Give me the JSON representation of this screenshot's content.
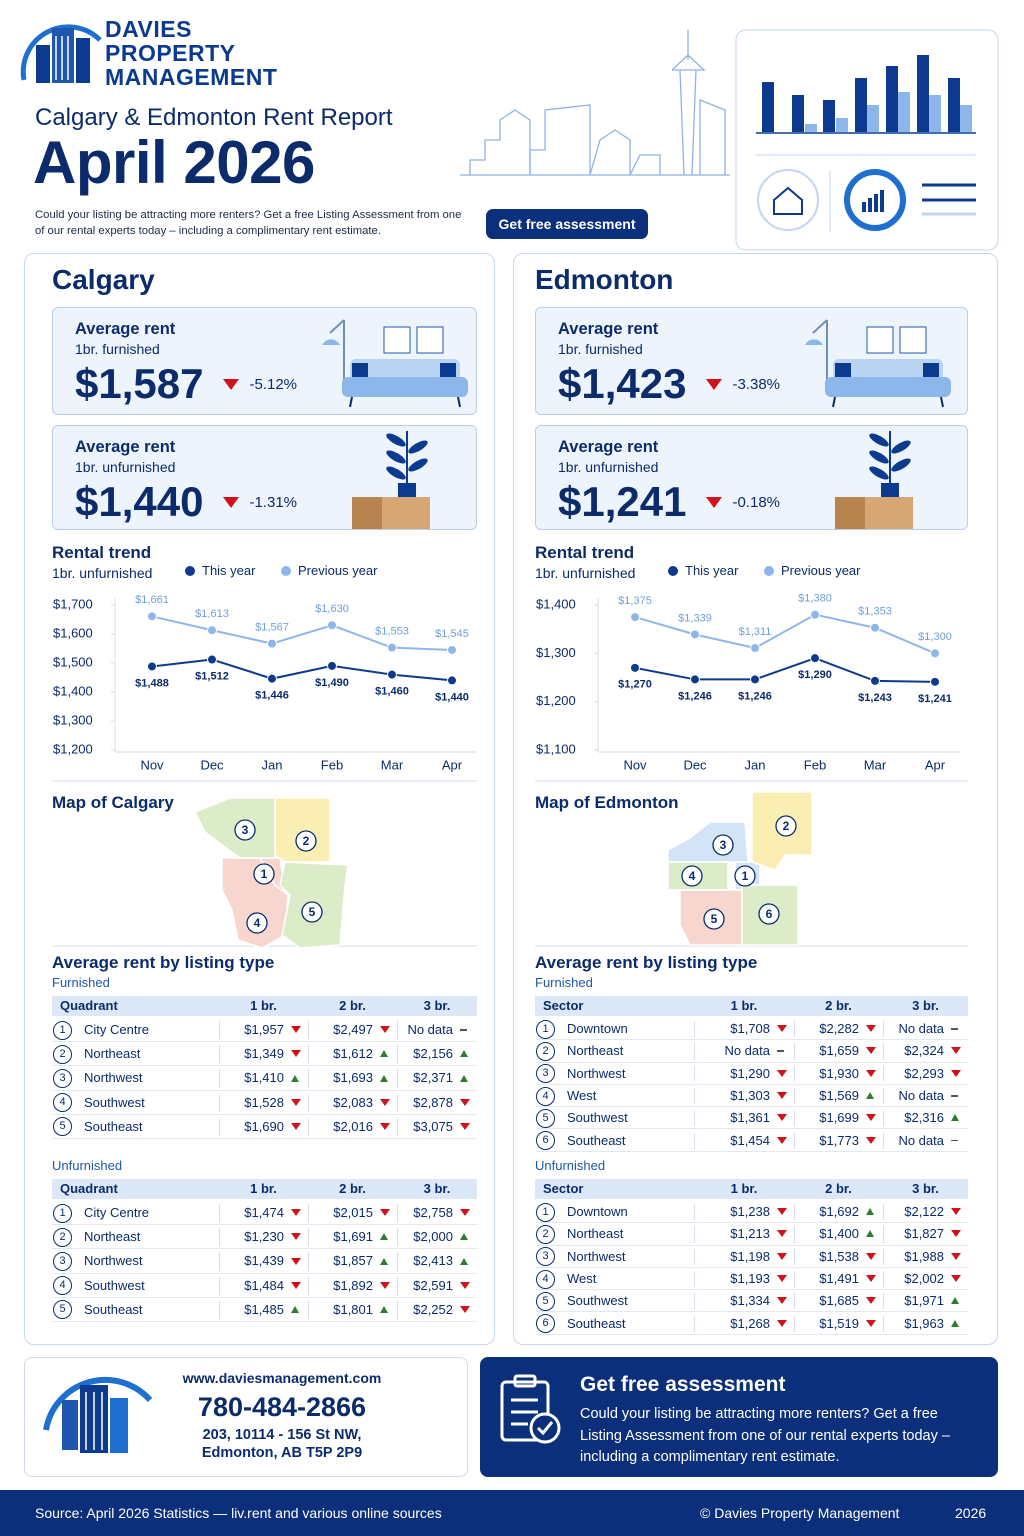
{
  "header": {
    "brand": [
      "DAVIES",
      "PROPERTY",
      "MANAGEMENT"
    ],
    "subtitle": "Calgary & Edmonton Rent Report",
    "title": "April 2026",
    "intro": "Could your listing be attracting more renters? Get a free Listing Assessment from one of our rental experts today – including a complimentary rent estimate.",
    "button": "Get free assessment"
  },
  "cities": [
    {
      "name": "Calgary",
      "cards": [
        {
          "label": "Average rent",
          "detail": "1br. furnished",
          "value": "$1,587",
          "change": "-5.12%",
          "trend": "down"
        },
        {
          "label": "Average rent",
          "detail": "1br. unfurnished",
          "value": "$1,440",
          "change": "-1.31%",
          "trend": "down"
        }
      ],
      "map": {
        "title": "Map of Calgary",
        "labels": [
          "1",
          "2",
          "3",
          "4",
          "5"
        ]
      },
      "listing": {
        "title": "Average rent by listing type",
        "groups": [
          {
            "name": "Furnished",
            "columns": [
              "Quadrant",
              "1 br.",
              "2 br.",
              "3 br."
            ],
            "rows": [
              {
                "num": "1",
                "name": "City Centre",
                "cells": [
                  "$1,957",
                  "$2,497",
                  "No data"
                ],
                "trends": [
                  "down",
                  "down",
                  "flat"
                ]
              },
              {
                "num": "2",
                "name": "Northeast",
                "cells": [
                  "$1,349",
                  "$1,612",
                  "$2,156"
                ],
                "trends": [
                  "down",
                  "up",
                  "up"
                ]
              },
              {
                "num": "3",
                "name": "Northwest",
                "cells": [
                  "$1,410",
                  "$1,693",
                  "$2,371"
                ],
                "trends": [
                  "up",
                  "up",
                  "up"
                ]
              },
              {
                "num": "4",
                "name": "Southwest",
                "cells": [
                  "$1,528",
                  "$2,083",
                  "$2,878"
                ],
                "trends": [
                  "down",
                  "down",
                  "down"
                ]
              },
              {
                "num": "5",
                "name": "Southeast",
                "cells": [
                  "$1,690",
                  "$2,016",
                  "$3,075"
                ],
                "trends": [
                  "down",
                  "down",
                  "down"
                ]
              }
            ]
          },
          {
            "name": "Unfurnished",
            "columns": [
              "Quadrant",
              "1 br.",
              "2 br.",
              "3 br."
            ],
            "rows": [
              {
                "num": "1",
                "name": "City Centre",
                "cells": [
                  "$1,474",
                  "$2,015",
                  "$2,758"
                ],
                "trends": [
                  "down",
                  "down",
                  "down"
                ]
              },
              {
                "num": "2",
                "name": "Northeast",
                "cells": [
                  "$1,230",
                  "$1,691",
                  "$2,000"
                ],
                "trends": [
                  "down",
                  "up",
                  "up"
                ]
              },
              {
                "num": "3",
                "name": "Northwest",
                "cells": [
                  "$1,439",
                  "$1,857",
                  "$2,413"
                ],
                "trends": [
                  "down",
                  "up",
                  "up"
                ]
              },
              {
                "num": "4",
                "name": "Southwest",
                "cells": [
                  "$1,484",
                  "$1,892",
                  "$2,591"
                ],
                "trends": [
                  "down",
                  "down",
                  "down"
                ]
              },
              {
                "num": "5",
                "name": "Southeast",
                "cells": [
                  "$1,485",
                  "$1,801",
                  "$2,252"
                ],
                "trends": [
                  "up",
                  "up",
                  "down"
                ]
              }
            ]
          }
        ]
      }
    },
    {
      "name": "Edmonton",
      "cards": [
        {
          "label": "Average rent",
          "detail": "1br. furnished",
          "value": "$1,423",
          "change": "-3.38%",
          "trend": "down"
        },
        {
          "label": "Average rent",
          "detail": "1br. unfurnished",
          "value": "$1,241",
          "change": "-0.18%",
          "trend": "down"
        }
      ],
      "map": {
        "title": "Map of Edmonton",
        "labels": [
          "1",
          "2",
          "3",
          "4",
          "5",
          "6"
        ]
      },
      "listing": {
        "title": "Average rent by listing type",
        "groups": [
          {
            "name": "Furnished",
            "columns": [
              "Sector",
              "1 br.",
              "2 br.",
              "3 br."
            ],
            "rows": [
              {
                "num": "1",
                "name": "Downtown",
                "cells": [
                  "$1,708",
                  "$2,282",
                  "No data"
                ],
                "trends": [
                  "down",
                  "down",
                  "flat"
                ]
              },
              {
                "num": "2",
                "name": "Northeast",
                "cells": [
                  "No data",
                  "$1,659",
                  "$2,324"
                ],
                "trends": [
                  "flat",
                  "down",
                  "down"
                ]
              },
              {
                "num": "3",
                "name": "Northwest",
                "cells": [
                  "$1,290",
                  "$1,930",
                  "$2,293"
                ],
                "trends": [
                  "down",
                  "down",
                  "down"
                ]
              },
              {
                "num": "4",
                "name": "West",
                "cells": [
                  "$1,303",
                  "$1,569",
                  "No data"
                ],
                "trends": [
                  "down",
                  "up",
                  "flat"
                ]
              },
              {
                "num": "5",
                "name": "Southwest",
                "cells": [
                  "$1,361",
                  "$1,699",
                  "$2,316"
                ],
                "trends": [
                  "down",
                  "down",
                  "up"
                ]
              },
              {
                "num": "6",
                "name": "Southeast",
                "cells": [
                  "$1,454",
                  "$1,773",
                  "No data"
                ],
                "trends": [
                  "down",
                  "down",
                  "flat"
                ]
              }
            ]
          },
          {
            "name": "Unfurnished",
            "columns": [
              "Sector",
              "1 br.",
              "2 br.",
              "3 br."
            ],
            "rows": [
              {
                "num": "1",
                "name": "Downtown",
                "cells": [
                  "$1,238",
                  "$1,692",
                  "$2,122"
                ],
                "trends": [
                  "down",
                  "up",
                  "down"
                ]
              },
              {
                "num": "2",
                "name": "Northeast",
                "cells": [
                  "$1,213",
                  "$1,400",
                  "$1,827"
                ],
                "trends": [
                  "down",
                  "up",
                  "down"
                ]
              },
              {
                "num": "3",
                "name": "Northwest",
                "cells": [
                  "$1,198",
                  "$1,538",
                  "$1,988"
                ],
                "trends": [
                  "down",
                  "down",
                  "down"
                ]
              },
              {
                "num": "4",
                "name": "West",
                "cells": [
                  "$1,193",
                  "$1,491",
                  "$2,002"
                ],
                "trends": [
                  "down",
                  "down",
                  "down"
                ]
              },
              {
                "num": "5",
                "name": "Southwest",
                "cells": [
                  "$1,334",
                  "$1,685",
                  "$1,971"
                ],
                "trends": [
                  "down",
                  "down",
                  "up"
                ]
              },
              {
                "num": "6",
                "name": "Southeast",
                "cells": [
                  "$1,268",
                  "$1,519",
                  "$1,963"
                ],
                "trends": [
                  "down",
                  "down",
                  "up"
                ]
              }
            ]
          }
        ]
      }
    }
  ],
  "chart_data": [
    {
      "type": "line",
      "title": "Rental trend",
      "subtitle": "1br. unfurnished",
      "categories": [
        "Nov",
        "Dec",
        "Jan",
        "Feb",
        "Mar",
        "Apr"
      ],
      "series": [
        {
          "name": "This year",
          "color": "#0d3a8c",
          "values": [
            1488,
            1512,
            1446,
            1490,
            1460,
            1440
          ],
          "value_labels": [
            "$1,488",
            "$1,512",
            "$1,446",
            "$1,490",
            "$1,460",
            "$1,440"
          ]
        },
        {
          "name": "Previous year",
          "color": "#8db7ea",
          "values": [
            1661,
            1613,
            1567,
            1630,
            1553,
            1545
          ],
          "value_labels": [
            "$1,661",
            "$1,613",
            "$1,567",
            "$1,630",
            "$1,553",
            "$1,545"
          ]
        }
      ],
      "ylim": [
        1200,
        1700
      ],
      "yticks": [
        {
          "value": 1200,
          "label": "$1,200"
        },
        {
          "value": 1300,
          "label": "$1,300"
        },
        {
          "value": 1400,
          "label": "$1,400"
        },
        {
          "value": 1500,
          "label": "$1,500"
        },
        {
          "value": 1600,
          "label": "$1,600"
        },
        {
          "value": 1700,
          "label": "$1,700"
        }
      ]
    },
    {
      "type": "line",
      "title": "Rental trend",
      "subtitle": "1br. unfurnished",
      "categories": [
        "Nov",
        "Dec",
        "Jan",
        "Feb",
        "Mar",
        "Apr"
      ],
      "series": [
        {
          "name": "This year",
          "color": "#0d3a8c",
          "values": [
            1270,
            1246,
            1246,
            1290,
            1243,
            1241
          ],
          "value_labels": [
            "$1,270",
            "$1,246",
            "$1,246",
            "$1,290",
            "$1,243",
            "$1,241"
          ]
        },
        {
          "name": "Previous year",
          "color": "#8db7ea",
          "values": [
            1375,
            1339,
            1311,
            1380,
            1353,
            1300
          ],
          "value_labels": [
            "$1,375",
            "$1,339",
            "$1,311",
            "$1,380",
            "$1,353",
            "$1,300"
          ]
        }
      ],
      "ylim": [
        1100,
        1400
      ],
      "yticks": [
        {
          "value": 1100,
          "label": "$1,100"
        },
        {
          "value": 1200,
          "label": "$1,200"
        },
        {
          "value": 1300,
          "label": "$1,300"
        },
        {
          "value": 1400,
          "label": "$1,400"
        }
      ]
    }
  ],
  "footer": {
    "website": "www.daviesmanagement.com",
    "phone": "780-484-2866",
    "address": [
      "203, 10114 - 156 St NW,",
      "Edmonton, AB T5P 2P9"
    ],
    "cta_title": "Get free assessment",
    "cta_text": "Could your listing be attracting more renters? Get a free Listing Assessment from one of our rental experts today – including a complimentary rent estimate.",
    "source": "Source: April 2026 Statistics — liv.rent and various online sources",
    "copyright": "© Davies Property Management",
    "year": "2026"
  }
}
